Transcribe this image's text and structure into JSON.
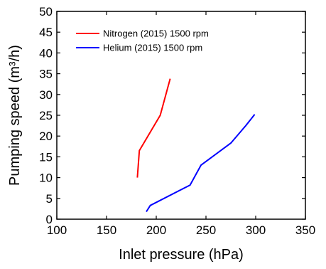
{
  "chart_data": {
    "type": "line",
    "title": "",
    "xlabel": "Inlet pressure (hPa)",
    "ylabel": "Pumping speed (m³/h)",
    "xlim": [
      100,
      350
    ],
    "ylim": [
      0,
      50
    ],
    "xticks": [
      100,
      150,
      200,
      250,
      300,
      350
    ],
    "yticks": [
      0,
      5,
      10,
      15,
      20,
      25,
      30,
      35,
      40,
      45,
      50
    ],
    "grid": false,
    "legend_position": "top-left",
    "series": [
      {
        "name": "Nitrogen (2015) 1500 rpm",
        "color": "#ff0000",
        "x": [
          181,
          183,
          204,
          214
        ],
        "y": [
          10,
          16.5,
          25,
          33.8
        ]
      },
      {
        "name": "Helium (2015) 1500 rpm",
        "color": "#0000ff",
        "x": [
          190,
          194,
          234,
          245,
          275,
          290,
          299
        ],
        "y": [
          1.8,
          3.3,
          8.2,
          13,
          18.3,
          22.5,
          25.2
        ]
      }
    ]
  }
}
